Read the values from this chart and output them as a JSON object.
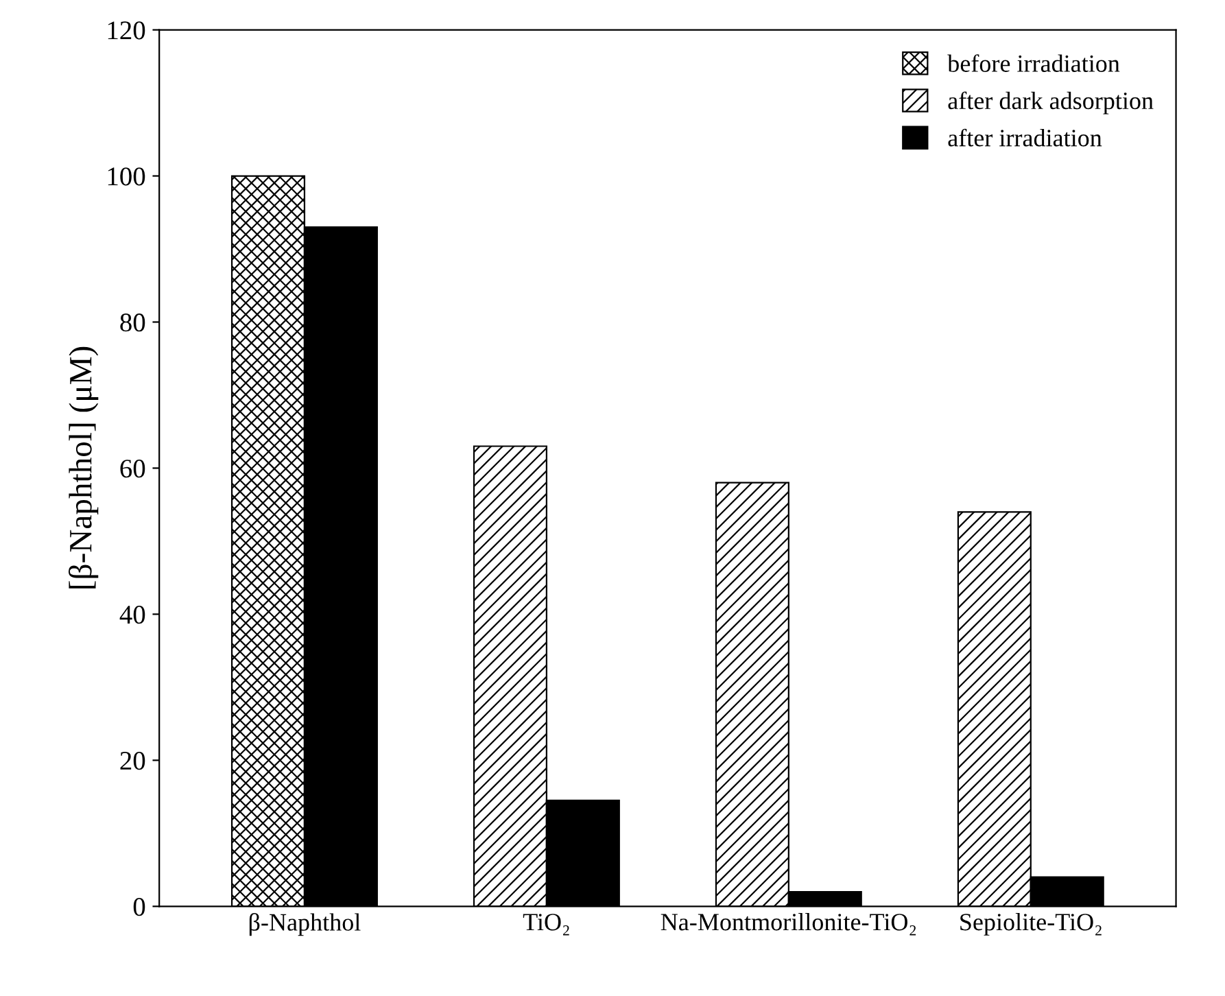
{
  "chart_data": {
    "type": "bar",
    "ylabel": "[β-Naphthol] (μM)",
    "categories": [
      "β-Naphthol",
      "TiO₂",
      "Na-Montmorillonite-TiO₂",
      "Sepiolite-TiO₂"
    ],
    "series": [
      {
        "name": "before irradiation",
        "color": "#000000",
        "values": [
          100,
          null,
          null,
          null
        ]
      },
      {
        "name": "after dark adsorption",
        "color": "#000000",
        "values": [
          null,
          63,
          58,
          54
        ]
      },
      {
        "name": "after irradiation",
        "color": "#000000",
        "values": [
          93,
          14.5,
          2,
          4
        ]
      }
    ],
    "ylim": [
      0,
      120
    ],
    "yticks": [
      0,
      20,
      40,
      60,
      80,
      100,
      120
    ],
    "grid": false,
    "legend": "top right"
  }
}
